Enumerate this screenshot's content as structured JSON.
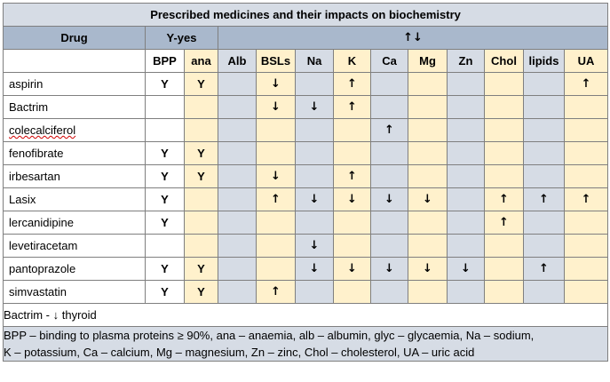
{
  "title": "Prescribed medicines and their impacts on biochemistry",
  "header": {
    "drug_label": "Drug",
    "yes_label": "Y-yes",
    "arrows_label": "↑↓"
  },
  "columns": [
    "BPP",
    "ana",
    "Alb",
    "BSLs",
    "Na",
    "K",
    "Ca",
    "Mg",
    "Zn",
    "Chol",
    "lipids",
    "UA"
  ],
  "rows": [
    {
      "drug": "aspirin",
      "values": [
        "Y",
        "Y",
        "",
        "↓",
        "",
        "↑",
        "",
        "",
        "",
        "",
        "",
        "↑"
      ]
    },
    {
      "drug": "Bactrim",
      "values": [
        "",
        "",
        "",
        "↓",
        "↓",
        "↑",
        "",
        "",
        "",
        "",
        "",
        ""
      ]
    },
    {
      "drug": "colecalciferol",
      "values": [
        "",
        "",
        "",
        "",
        "",
        "",
        "↑",
        "",
        "",
        "",
        "",
        ""
      ]
    },
    {
      "drug": "fenofibrate",
      "values": [
        "Y",
        "Y",
        "",
        "",
        "",
        "",
        "",
        "",
        "",
        "",
        "",
        ""
      ]
    },
    {
      "drug": "irbesartan",
      "values": [
        "Y",
        "Y",
        "",
        "↓",
        "",
        "↑",
        "",
        "",
        "",
        "",
        "",
        ""
      ]
    },
    {
      "drug": "Lasix",
      "values": [
        "Y",
        "",
        "",
        "↑",
        "↓",
        "↓",
        "↓",
        "↓",
        "",
        "↑",
        "↑",
        "↑"
      ]
    },
    {
      "drug": "lercanidipine",
      "values": [
        "Y",
        "",
        "",
        "",
        "",
        "",
        "",
        "",
        "",
        "↑",
        "",
        ""
      ]
    },
    {
      "drug": "levetiracetam",
      "values": [
        "",
        "",
        "",
        "",
        "↓",
        "",
        "",
        "",
        "",
        "",
        "",
        ""
      ]
    },
    {
      "drug": "pantoprazole",
      "values": [
        "Y",
        "Y",
        "",
        "",
        "↓",
        "↓",
        "↓",
        "↓",
        "↓",
        "",
        "↑",
        ""
      ]
    },
    {
      "drug": "simvastatin",
      "values": [
        "Y",
        "Y",
        "",
        "↑",
        "",
        "",
        "",
        "",
        "",
        "",
        "",
        ""
      ]
    }
  ],
  "note": "Bactrim - ↓ thyroid",
  "legend": {
    "line1": "BPP – binding to plasma proteins ≥ 90%, ana – anaemia, alb – albumin, glyc – glycaemia, Na – sodium,",
    "line2": "K – potassium, Ca – calcium, Mg – magnesium, Zn – zinc, Chol – cholesterol, UA – uric acid"
  }
}
